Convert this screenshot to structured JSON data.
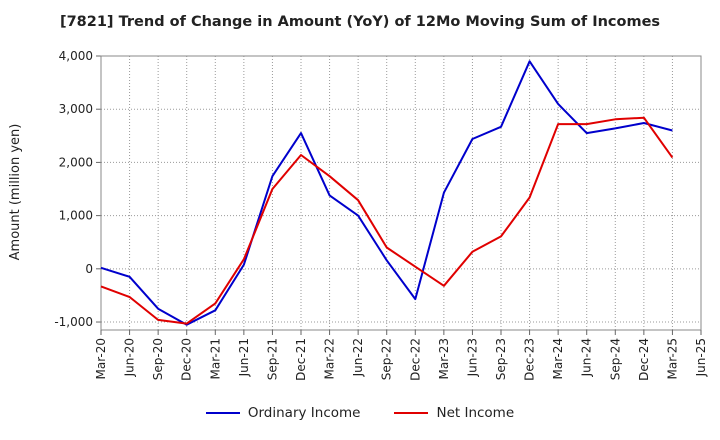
{
  "chart_data": {
    "type": "line",
    "title": "[7821]  Trend of Change in Amount (YoY) of 12Mo Moving Sum of Incomes",
    "ylabel": "Amount (million yen)",
    "xlabel": "",
    "categories": [
      "Mar-20",
      "Jun-20",
      "Sep-20",
      "Dec-20",
      "Mar-21",
      "Jun-21",
      "Sep-21",
      "Dec-21",
      "Mar-22",
      "Jun-22",
      "Sep-22",
      "Dec-22",
      "Mar-23",
      "Jun-23",
      "Sep-23",
      "Dec-23",
      "Mar-24",
      "Jun-24",
      "Sep-24",
      "Dec-24",
      "Mar-25",
      "Jun-25"
    ],
    "ylim": [
      -1150,
      4000
    ],
    "yticks": [
      -1000,
      0,
      1000,
      2000,
      3000,
      4000
    ],
    "ytick_labels": [
      "-1,000",
      "0",
      "1,000",
      "2,000",
      "3,000",
      "4,000"
    ],
    "grid": true,
    "legend_position": "bottom",
    "series": [
      {
        "name": "Ordinary Income",
        "color": "#0000cc",
        "values": [
          20,
          -150,
          -750,
          -1050,
          -780,
          80,
          1740,
          2550,
          1380,
          1000,
          160,
          -570,
          1430,
          2440,
          2670,
          3900,
          3100,
          2550,
          2640,
          2740,
          2600,
          null
        ]
      },
      {
        "name": "Net Income",
        "color": "#e00000",
        "values": [
          -330,
          -530,
          -960,
          -1030,
          -650,
          180,
          1500,
          2140,
          1740,
          1290,
          400,
          40,
          -320,
          320,
          610,
          1340,
          2720,
          2720,
          2810,
          2840,
          2090,
          null
        ]
      }
    ]
  }
}
